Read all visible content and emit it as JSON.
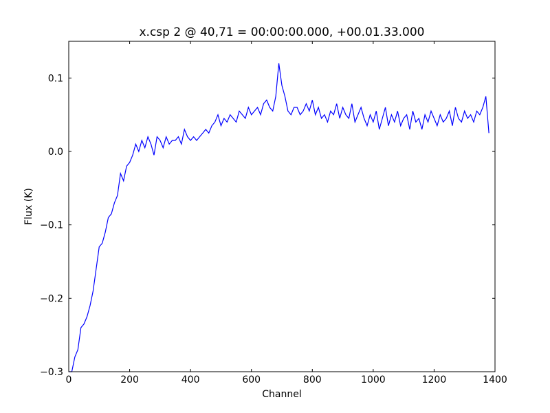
{
  "chart_data": {
    "type": "line",
    "title": "x.csp 2 @ 40,71 = 00:00:00.000, +00.01.33.000",
    "xlabel": "Channel",
    "ylabel": "Flux (K)",
    "xlim": [
      0,
      1400
    ],
    "ylim": [
      -0.3,
      0.15
    ],
    "xticks": [
      0,
      200,
      400,
      600,
      800,
      1000,
      1200,
      1400
    ],
    "yticks": [
      {
        "value": -0.3,
        "label": "−0.3"
      },
      {
        "value": -0.2,
        "label": "−0.2"
      },
      {
        "value": -0.1,
        "label": "−0.1"
      },
      {
        "value": 0,
        "label": "0.0"
      },
      0.1
    ],
    "grid": false,
    "x": [
      0,
      10,
      20,
      30,
      40,
      50,
      60,
      70,
      80,
      90,
      100,
      110,
      120,
      130,
      140,
      150,
      160,
      170,
      180,
      190,
      200,
      210,
      220,
      230,
      240,
      250,
      260,
      270,
      280,
      290,
      300,
      310,
      320,
      330,
      340,
      350,
      360,
      370,
      380,
      390,
      400,
      410,
      420,
      430,
      440,
      450,
      460,
      470,
      480,
      490,
      500,
      510,
      520,
      530,
      540,
      550,
      560,
      570,
      580,
      590,
      600,
      610,
      620,
      630,
      640,
      650,
      660,
      670,
      680,
      690,
      700,
      710,
      720,
      730,
      740,
      750,
      760,
      770,
      780,
      790,
      800,
      810,
      820,
      830,
      840,
      850,
      860,
      870,
      880,
      890,
      900,
      910,
      920,
      930,
      940,
      950,
      960,
      970,
      980,
      990,
      1000,
      1010,
      1020,
      1030,
      1040,
      1050,
      1060,
      1070,
      1080,
      1090,
      1100,
      1110,
      1120,
      1130,
      1140,
      1150,
      1160,
      1170,
      1180,
      1190,
      1200,
      1210,
      1220,
      1230,
      1240,
      1250,
      1260,
      1270,
      1280,
      1290,
      1300,
      1310,
      1320,
      1330,
      1340,
      1350,
      1360,
      1370,
      1380
    ],
    "series": [
      {
        "color": "#0000ff",
        "values": [
          -0.3,
          -0.3,
          -0.28,
          -0.27,
          -0.24,
          -0.235,
          -0.225,
          -0.21,
          -0.19,
          -0.16,
          -0.13,
          -0.125,
          -0.11,
          -0.09,
          -0.085,
          -0.07,
          -0.06,
          -0.03,
          -0.04,
          -0.02,
          -0.015,
          -0.005,
          0.01,
          0.0,
          0.015,
          0.005,
          0.02,
          0.01,
          -0.005,
          0.02,
          0.015,
          0.005,
          0.02,
          0.01,
          0.015,
          0.015,
          0.02,
          0.01,
          0.03,
          0.02,
          0.015,
          0.02,
          0.015,
          0.02,
          0.025,
          0.03,
          0.025,
          0.035,
          0.04,
          0.05,
          0.035,
          0.045,
          0.04,
          0.05,
          0.045,
          0.04,
          0.055,
          0.05,
          0.045,
          0.06,
          0.05,
          0.055,
          0.06,
          0.05,
          0.065,
          0.07,
          0.06,
          0.055,
          0.075,
          0.12,
          0.09,
          0.075,
          0.055,
          0.05,
          0.06,
          0.06,
          0.05,
          0.055,
          0.065,
          0.055,
          0.07,
          0.05,
          0.06,
          0.045,
          0.05,
          0.04,
          0.055,
          0.05,
          0.065,
          0.045,
          0.06,
          0.05,
          0.045,
          0.065,
          0.04,
          0.05,
          0.06,
          0.045,
          0.035,
          0.05,
          0.04,
          0.055,
          0.03,
          0.045,
          0.06,
          0.035,
          0.05,
          0.04,
          0.055,
          0.035,
          0.045,
          0.05,
          0.03,
          0.055,
          0.04,
          0.045,
          0.03,
          0.05,
          0.04,
          0.055,
          0.045,
          0.035,
          0.05,
          0.04,
          0.045,
          0.055,
          0.035,
          0.06,
          0.045,
          0.04,
          0.055,
          0.045,
          0.05,
          0.04,
          0.055,
          0.05,
          0.06,
          0.075,
          0.025
        ]
      }
    ]
  }
}
